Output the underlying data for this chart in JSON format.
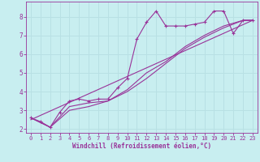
{
  "xlabel": "Windchill (Refroidissement éolien,°C)",
  "bg_color": "#c8eef0",
  "line_color": "#993399",
  "grid_color": "#b8e0e4",
  "xlim": [
    -0.5,
    23.5
  ],
  "ylim": [
    1.8,
    8.8
  ],
  "yticks": [
    2,
    3,
    4,
    5,
    6,
    7,
    8
  ],
  "xticks": [
    0,
    1,
    2,
    3,
    4,
    5,
    6,
    7,
    8,
    9,
    10,
    11,
    12,
    13,
    14,
    15,
    16,
    17,
    18,
    19,
    20,
    21,
    22,
    23
  ],
  "line1_x": [
    0,
    1,
    2,
    3,
    4,
    5,
    6,
    7,
    8,
    9,
    10,
    11,
    12,
    13,
    14,
    15,
    16,
    17,
    18,
    19,
    20,
    21,
    22,
    23
  ],
  "line1_y": [
    2.6,
    2.4,
    2.1,
    2.9,
    3.5,
    3.6,
    3.5,
    3.6,
    3.6,
    4.2,
    4.7,
    6.8,
    7.7,
    8.3,
    7.5,
    7.5,
    7.5,
    7.6,
    7.7,
    8.3,
    8.3,
    7.1,
    7.8,
    7.8
  ],
  "line2_x": [
    0,
    2,
    4,
    6,
    8,
    10,
    12,
    14,
    16,
    18,
    20,
    22,
    23
  ],
  "line2_y": [
    2.6,
    2.1,
    3.2,
    3.4,
    3.5,
    4.1,
    5.0,
    5.6,
    6.4,
    7.0,
    7.5,
    7.8,
    7.8
  ],
  "line3_x": [
    0,
    2,
    4,
    6,
    8,
    10,
    12,
    14,
    16,
    18,
    20,
    22,
    23
  ],
  "line3_y": [
    2.6,
    2.1,
    3.0,
    3.2,
    3.5,
    4.0,
    4.7,
    5.5,
    6.3,
    6.9,
    7.4,
    7.8,
    7.8
  ],
  "line4_x": [
    0,
    23
  ],
  "line4_y": [
    2.5,
    7.8
  ]
}
